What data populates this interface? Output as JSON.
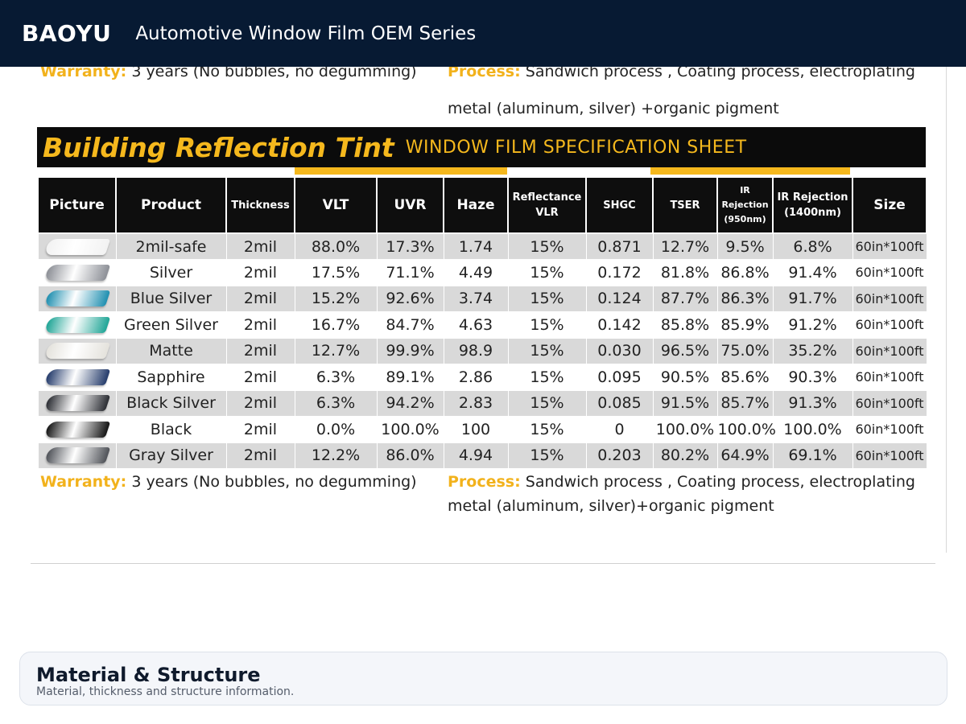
{
  "header": {
    "brand": "BAOYU",
    "subtitle": "Automotive Window Film OEM Series"
  },
  "sheet": {
    "top_notes": {
      "warranty_label": "Warranty:",
      "warranty_text": "3 years (No bubbles, no degumming)",
      "process_label": "Process:",
      "process_line1": "Sandwich process , Coating process, electroplating",
      "process_line2": "metal   (aluminum, silver)  +organic pigment"
    },
    "banner": {
      "title": "Building Reflection Tint",
      "subtitle": "WINDOW FILM SPECIFICATION SHEET"
    },
    "columns": [
      {
        "key": "picture",
        "label": "Picture"
      },
      {
        "key": "product",
        "label": "Product"
      },
      {
        "key": "thickness",
        "label": "Thickness"
      },
      {
        "key": "vlt",
        "label": "VLT"
      },
      {
        "key": "uvr",
        "label": "UVR"
      },
      {
        "key": "haze",
        "label": "Haze"
      },
      {
        "key": "reflectance",
        "label": "Reflectance VLR"
      },
      {
        "key": "shgc",
        "label": "SHGC"
      },
      {
        "key": "tser",
        "label": "TSER"
      },
      {
        "key": "ir950",
        "label": "IR Rejection (950nm)"
      },
      {
        "key": "ir1400",
        "label": "IR Rejection (1400nm)"
      },
      {
        "key": "size",
        "label": "Size"
      }
    ],
    "rows": [
      {
        "swatch": "#f2f2f2",
        "product": "2mil-safe",
        "thickness": "2mil",
        "vlt": "88.0%",
        "uvr": "17.3%",
        "haze": "1.74",
        "reflectance": "15%",
        "shgc": "0.871",
        "tser": "12.7%",
        "ir950": "9.5%",
        "ir1400": "6.8%",
        "size": "60in*100ft"
      },
      {
        "swatch": "#8c8f96",
        "product": "Silver",
        "thickness": "2mil",
        "vlt": "17.5%",
        "uvr": "71.1%",
        "haze": "4.49",
        "reflectance": "15%",
        "shgc": "0.172",
        "tser": "81.8%",
        "ir950": "86.8%",
        "ir1400": "91.4%",
        "size": "60in*100ft"
      },
      {
        "swatch": "#1f8fb0",
        "product": "Blue Silver",
        "thickness": "2mil",
        "vlt": "15.2%",
        "uvr": "92.6%",
        "haze": "3.74",
        "reflectance": "15%",
        "shgc": "0.124",
        "tser": "87.7%",
        "ir950": "86.3%",
        "ir1400": "91.7%",
        "size": "60in*100ft"
      },
      {
        "swatch": "#1fa596",
        "product": "Green Silver",
        "thickness": "2mil",
        "vlt": "16.7%",
        "uvr": "84.7%",
        "haze": "4.63",
        "reflectance": "15%",
        "shgc": "0.142",
        "tser": "85.8%",
        "ir950": "85.9%",
        "ir1400": "91.2%",
        "size": "60in*100ft"
      },
      {
        "swatch": "#e4e2dc",
        "product": "Matte",
        "thickness": "2mil",
        "vlt": "12.7%",
        "uvr": "99.9%",
        "haze": "98.9",
        "reflectance": "15%",
        "shgc": "0.030",
        "tser": "96.5%",
        "ir950": "75.0%",
        "ir1400": "35.2%",
        "size": "60in*100ft"
      },
      {
        "swatch": "#243b6b",
        "product": "Sapphire",
        "thickness": "2mil",
        "vlt": "6.3%",
        "uvr": "89.1%",
        "haze": "2.86",
        "reflectance": "15%",
        "shgc": "0.095",
        "tser": "90.5%",
        "ir950": "85.6%",
        "ir1400": "90.3%",
        "size": "60in*100ft"
      },
      {
        "swatch": "#2b2d33",
        "product": "Black Silver",
        "thickness": "2mil",
        "vlt": "6.3%",
        "uvr": "94.2%",
        "haze": "2.83",
        "reflectance": "15%",
        "shgc": "0.085",
        "tser": "91.5%",
        "ir950": "85.7%",
        "ir1400": "91.3%",
        "size": "60in*100ft"
      },
      {
        "swatch": "#141414",
        "product": "Black",
        "thickness": "2mil",
        "vlt": "0.0%",
        "uvr": "100.0%",
        "haze": "100",
        "reflectance": "15%",
        "shgc": "0",
        "tser": "100.0%",
        "ir950": "100.0%",
        "ir1400": "100.0%",
        "size": "60in*100ft"
      },
      {
        "swatch": "#4f5258",
        "product": "Gray Silver",
        "thickness": "2mil",
        "vlt": "12.2%",
        "uvr": "86.0%",
        "haze": "4.94",
        "reflectance": "15%",
        "shgc": "0.203",
        "tser": "80.2%",
        "ir950": "64.9%",
        "ir1400": "69.1%",
        "size": "60in*100ft"
      }
    ],
    "bottom_notes": {
      "warranty_label": "Warranty:",
      "warranty_text": "3 years (No bubbles, no degumming)",
      "process_label": "Process:",
      "process_line1": "Sandwich process , Coating process, electroplating",
      "process_line2": "metal (aluminum, silver)+organic pigment"
    }
  },
  "card": {
    "title": "Material & Structure",
    "description": "Material, thickness and structure information."
  },
  "colors": {
    "topbar": "#071a33",
    "accent": "#f5b81d",
    "header_bg": "#0e0e0e",
    "row_alt": "#d9d9d9"
  }
}
